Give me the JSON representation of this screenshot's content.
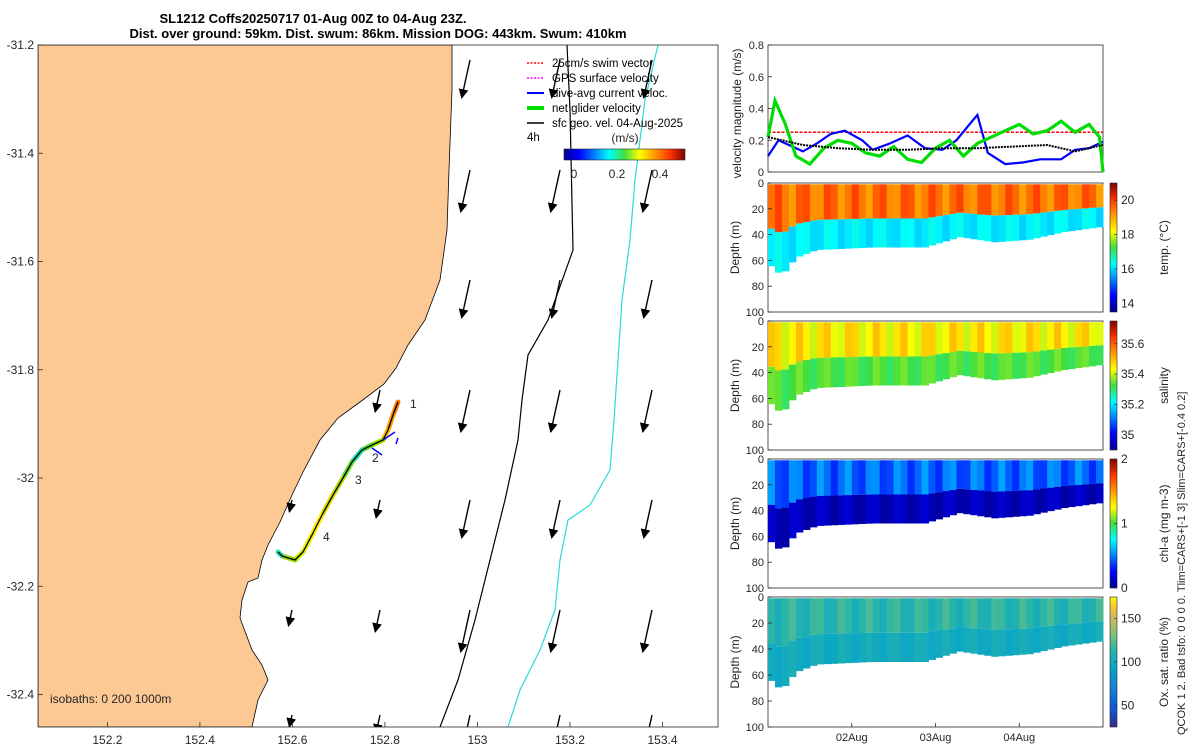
{
  "title": {
    "line1": "SL1212 Coffs20250717 01-Aug 00Z to 04-Aug 23Z.",
    "line2": "Dist. over ground: 59km. Dist. swum: 86km. Mission DOG: 443km. Swum: 410km"
  },
  "colors": {
    "land": "#FCC994",
    "swim": "#FF0000",
    "gps": "#FF00FF",
    "dive": "#0000FF",
    "net": "#00DD00",
    "geo": "#000000",
    "isobath200": "#000000",
    "isobath1000": "#2BD9D9"
  },
  "map": {
    "xticks": [
      "152.2",
      "152.4",
      "152.6",
      "152.8",
      "153",
      "153.2",
      "153.4"
    ],
    "yticks": [
      "-31.2",
      "-31.4",
      "-31.6",
      "-31.8",
      "-32",
      "-32.2",
      "-32.4"
    ],
    "xlim": [
      152.05,
      153.52
    ],
    "ylim": [
      -32.46,
      -31.2
    ],
    "isobaths_label": "isobaths: 0   200  1000m",
    "track_day_labels": [
      "1",
      "2",
      "3",
      "4"
    ],
    "legend": {
      "swim": "25cm/s swim vector",
      "gps": "GPS surface velocity",
      "dive": "dive-avg current veloc.",
      "net": "net glider velocity",
      "geo": "sfc geo. vel. 04-Aug-2025",
      "interval": "4h",
      "cbar_title": "(m/s)",
      "cbar_ticks": [
        "0",
        "0.2",
        "0.4"
      ]
    }
  },
  "chart_data": [
    {
      "type": "line",
      "title": "velocity magnitude",
      "ylabel": "velocity magnitude (m/s)",
      "ylim": [
        0,
        0.8
      ],
      "yticks": [
        "0",
        "0.2",
        "0.4",
        "0.6",
        "0.8"
      ],
      "xlim": [
        0,
        96
      ],
      "series": [
        {
          "name": "25cm/s swim vector",
          "x": [
            0,
            96
          ],
          "values": [
            0.25,
            0.25
          ]
        },
        {
          "name": "dive-avg current veloc.",
          "x": [
            0,
            3,
            6,
            10,
            14,
            18,
            22,
            27,
            30,
            35,
            40,
            45,
            50,
            54,
            57,
            60,
            63,
            68,
            73,
            78,
            84,
            88,
            92,
            96
          ],
          "values": [
            0.1,
            0.2,
            0.17,
            0.13,
            0.18,
            0.24,
            0.26,
            0.2,
            0.14,
            0.18,
            0.23,
            0.15,
            0.14,
            0.2,
            0.28,
            0.36,
            0.12,
            0.05,
            0.06,
            0.08,
            0.08,
            0.14,
            0.15,
            0.19
          ]
        },
        {
          "name": "net glider velocity",
          "x": [
            0,
            2,
            5,
            8,
            12,
            16,
            20,
            24,
            28,
            32,
            36,
            40,
            44,
            48,
            52,
            56,
            60,
            64,
            68,
            72,
            76,
            80,
            84,
            88,
            92,
            95,
            96
          ],
          "values": [
            0.22,
            0.45,
            0.3,
            0.1,
            0.05,
            0.15,
            0.2,
            0.18,
            0.12,
            0.1,
            0.16,
            0.08,
            0.06,
            0.15,
            0.2,
            0.1,
            0.18,
            0.22,
            0.26,
            0.3,
            0.24,
            0.26,
            0.32,
            0.25,
            0.3,
            0.22,
            0.0
          ]
        },
        {
          "name": "sfc geo. vel.",
          "x": [
            0,
            10,
            20,
            30,
            40,
            50,
            60,
            70,
            80,
            88,
            96
          ],
          "values": [
            0.22,
            0.17,
            0.15,
            0.14,
            0.14,
            0.15,
            0.15,
            0.16,
            0.17,
            0.13,
            0.17
          ]
        }
      ]
    },
    {
      "type": "heatmap",
      "ylabel": "Depth (m)",
      "cbar_label": "temp. (°C)",
      "clim": [
        13.5,
        21
      ],
      "cbar_ticks": [
        "14",
        "16",
        "18",
        "20"
      ],
      "yticks": [
        "0",
        "20",
        "40",
        "60",
        "80",
        "100"
      ],
      "bottom_depth": [
        [
          0,
          62
        ],
        [
          4,
          72
        ],
        [
          8,
          58
        ],
        [
          14,
          52
        ],
        [
          30,
          50
        ],
        [
          45,
          50
        ],
        [
          55,
          42
        ],
        [
          65,
          46
        ],
        [
          75,
          44
        ],
        [
          85,
          38
        ],
        [
          96,
          34
        ]
      ],
      "upper_value": 19.5,
      "lower_value": 16.2
    },
    {
      "type": "heatmap",
      "ylabel": "Depth (m)",
      "cbar_label": "salinity",
      "clim": [
        34.9,
        35.75
      ],
      "cbar_ticks": [
        "35",
        "35.2",
        "35.4",
        "35.6"
      ],
      "yticks": [
        "0",
        "20",
        "40",
        "60",
        "80",
        "100"
      ],
      "bottom_depth": [
        [
          0,
          62
        ],
        [
          4,
          72
        ],
        [
          8,
          58
        ],
        [
          14,
          52
        ],
        [
          30,
          50
        ],
        [
          45,
          50
        ],
        [
          55,
          42
        ],
        [
          65,
          46
        ],
        [
          75,
          44
        ],
        [
          85,
          38
        ],
        [
          96,
          34
        ]
      ],
      "upper_value": 35.45,
      "lower_value": 35.33
    },
    {
      "type": "heatmap",
      "ylabel": "Depth (m)",
      "cbar_label": "chl-a (mg m-3)",
      "clim": [
        0,
        2
      ],
      "cbar_ticks": [
        "0",
        "1",
        "2"
      ],
      "yticks": [
        "0",
        "20",
        "40",
        "60",
        "80",
        "100"
      ],
      "bottom_depth": [
        [
          0,
          62
        ],
        [
          4,
          72
        ],
        [
          8,
          58
        ],
        [
          14,
          52
        ],
        [
          30,
          50
        ],
        [
          45,
          50
        ],
        [
          55,
          42
        ],
        [
          65,
          46
        ],
        [
          75,
          44
        ],
        [
          85,
          38
        ],
        [
          96,
          34
        ]
      ],
      "upper_value": 0.45,
      "lower_value": 0.1
    },
    {
      "type": "heatmap",
      "ylabel": "Depth (m)",
      "cbar_label": "Ox. sat. ratio (%)",
      "clim": [
        25,
        175
      ],
      "cbar_ticks": [
        "50",
        "100",
        "150"
      ],
      "yticks": [
        "0",
        "20",
        "40",
        "60",
        "80",
        "100"
      ],
      "xticks": [
        "02Aug",
        "03Aug",
        "04Aug"
      ],
      "bottom_depth": [
        [
          0,
          62
        ],
        [
          4,
          72
        ],
        [
          8,
          58
        ],
        [
          14,
          52
        ],
        [
          30,
          50
        ],
        [
          45,
          50
        ],
        [
          55,
          42
        ],
        [
          65,
          46
        ],
        [
          75,
          44
        ],
        [
          85,
          38
        ],
        [
          96,
          34
        ]
      ],
      "upper_value": 112,
      "lower_value": 100
    }
  ],
  "side_label": "QCOK 1  2. Bad tsfo:  0  0  0  0. Tlim=CARS+[-1 3] Slim=CARS+[-0.4 0.2]"
}
